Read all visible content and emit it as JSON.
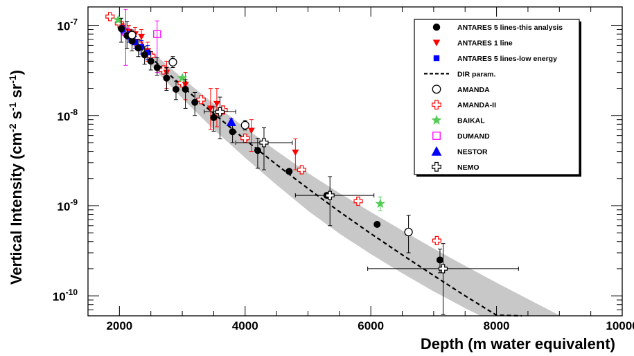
{
  "chart_data": {
    "type": "scatter",
    "title": "",
    "xlabel": "Depth (m water equivalent)",
    "ylabel": "Vertical Intensity (cm⁻² s⁻¹ sr⁻¹)",
    "ylabel_parts": {
      "main": "Vertical Intensity (cm",
      "e1": "-2",
      "s1": " s",
      "e2": "-1",
      "s2": " sr",
      "e3": "-1",
      "end": ")"
    },
    "xlim": [
      1500,
      10000
    ],
    "ylim": [
      6e-11,
      1.6e-07
    ],
    "yscale": "log",
    "legend_position": "top-right",
    "x_ticks": [
      "2000",
      "4000",
      "6000",
      "8000",
      "10000"
    ],
    "x_tick_values": [
      2000,
      4000,
      6000,
      8000,
      10000
    ],
    "y_ticks": [
      {
        "value": 1e-07,
        "base": "10",
        "exp": "-7"
      },
      {
        "value": 1e-08,
        "base": "10",
        "exp": "-8"
      },
      {
        "value": 1e-09,
        "base": "10",
        "exp": "-9"
      },
      {
        "value": 1e-10,
        "base": "10",
        "exp": "-10"
      }
    ],
    "band": {
      "x": [
        2000,
        2500,
        3000,
        3500,
        4000,
        4500,
        5000,
        5500,
        6000,
        6500,
        7000,
        7500,
        8000,
        8500,
        9000
      ],
      "upper": [
        1e-07,
        5.2e-08,
        2.6e-08,
        1.35e-08,
        7.3e-09,
        4.05e-09,
        2.3e-09,
        1.38e-09,
        8.5e-10,
        5.3e-10,
        3.35e-10,
        2.15e-10,
        1.4e-10,
        9.2e-11,
        6.1e-11
      ],
      "lower": [
        8.5e-08,
        3.6e-08,
        1.55e-08,
        7e-09,
        3.4e-09,
        1.7e-09,
        8.8e-10,
        4.9e-10,
        2.9e-10,
        1.78e-10,
        1.12e-10,
        7.3e-11,
        4.9e-11,
        3.3e-11,
        2.3e-11
      ]
    },
    "series": [
      {
        "name": "ANTARES 5 lines-this analysis",
        "marker": "circle-filled",
        "color": "#000000",
        "x": [
          2030,
          2120,
          2200,
          2300,
          2400,
          2500,
          2600,
          2750,
          2900,
          3050,
          3200,
          3500,
          3800,
          4200,
          4700,
          5300,
          6100,
          7100
        ],
        "y": [
          9.2e-08,
          7.7e-08,
          6.7e-08,
          5.6e-08,
          4.7e-08,
          4e-08,
          3.4e-08,
          2.6e-08,
          1.95e-08,
          1.95e-08,
          1.4e-08,
          9.5e-09,
          6.6e-09,
          4.1e-09,
          2.4e-09,
          1.3e-09,
          6.2e-10,
          2.5e-10
        ],
        "err_lo": [
          6.5e-08,
          5.5e-08,
          5.2e-08,
          4.5e-08,
          3.7e-08,
          3.2e-08,
          2.8e-08,
          1.9e-08,
          1.5e-08,
          1.2e-08,
          1e-08,
          6.7e-09,
          5e-09,
          2.6e-09,
          2.4e-09,
          1.3e-09,
          6.2e-10,
          1.8e-10
        ],
        "err_hi": [
          1.2e-07,
          1.1e-07,
          8.9e-08,
          7e-08,
          5.8e-08,
          5.1e-08,
          4.4e-08,
          3.4e-08,
          2.4e-08,
          2.5e-08,
          1.8e-08,
          1.25e-08,
          8e-09,
          5.6e-09,
          2.4e-09,
          1.3e-09,
          6.2e-10,
          3.3e-10
        ]
      },
      {
        "name": "ANTARES 1 line",
        "marker": "triangle-down-filled",
        "color": "#ff0000",
        "x": [
          2050,
          2150,
          2250,
          2350,
          2450,
          2750,
          3050,
          3450,
          3550,
          4100,
          4800
        ],
        "y": [
          9.5e-08,
          8.5e-08,
          8e-08,
          7.5e-08,
          5.2e-08,
          3e-08,
          2.2e-08,
          1.2e-08,
          1.35e-08,
          6.8e-09,
          3.9e-09
        ],
        "err_lo": [
          8.5e-08,
          7.5e-08,
          7e-08,
          6.5e-08,
          4e-08,
          2e-08,
          1.5e-08,
          7e-09,
          7.5e-09,
          4e-09,
          2.5e-09
        ],
        "err_hi": [
          1.05e-07,
          1e-07,
          9.5e-08,
          9e-08,
          6.5e-08,
          4e-08,
          3e-08,
          2e-08,
          2e-08,
          9e-09,
          5.5e-09
        ]
      },
      {
        "name": "ANTARES 5 lines-low energy",
        "marker": "square-filled",
        "color": "#0000ff",
        "x": [
          2050,
          2150,
          2250,
          2350,
          2450
        ],
        "y": [
          9e-08,
          7.5e-08,
          6.5e-08,
          5.8e-08,
          5e-08
        ],
        "err_lo": [
          8.2e-08,
          6.5e-08,
          5.5e-08,
          4.8e-08,
          4.2e-08
        ],
        "err_hi": [
          1e-07,
          8.5e-08,
          7.5e-08,
          6.8e-08,
          6e-08
        ]
      },
      {
        "name": "DIR param.",
        "marker": "dashed-line",
        "color": "#000000",
        "x": [
          2000,
          2500,
          3000,
          3500,
          4000,
          4500,
          5000,
          5500,
          6000,
          6500,
          7000,
          7500,
          8000,
          8400
        ],
        "y": [
          9.2e-08,
          4.4e-08,
          2.1e-08,
          1.05e-08,
          5.4e-09,
          2.85e-09,
          1.55e-09,
          8.6e-10,
          4.9e-10,
          2.85e-10,
          1.68e-10,
          1e-10,
          6.1e-11,
          4.2e-11
        ]
      },
      {
        "name": "AMANDA",
        "marker": "circle-open",
        "color": "#000000",
        "x": [
          2200,
          2850,
          4000,
          6600
        ],
        "y": [
          7.8e-08,
          3.9e-08,
          7.8e-09,
          5.1e-10
        ],
        "err_lo": [
          7e-08,
          3.4e-08,
          6.9e-09,
          3e-10
        ],
        "err_hi": [
          8.6e-08,
          4.5e-08,
          8.8e-09,
          7.8e-10
        ]
      },
      {
        "name": "AMANDA-II",
        "marker": "cross-open",
        "color": "#ff0000",
        "x": [
          1850,
          2000,
          2300,
          2500,
          2700,
          3000,
          3300,
          3650,
          4000,
          4900,
          5800,
          7050
        ],
        "y": [
          1.25e-07,
          1.05e-07,
          6.3e-08,
          4.6e-08,
          3.2e-08,
          2.3e-08,
          1.5e-08,
          1.15e-08,
          5.6e-09,
          2.5e-09,
          1.12e-09,
          4.1e-10
        ],
        "err_lo": [
          1.25e-07,
          1.05e-07,
          6.3e-08,
          4.6e-08,
          3.2e-08,
          2.3e-08,
          1.5e-08,
          1.15e-08,
          5.6e-09,
          2.5e-09,
          1.12e-09,
          4.1e-10
        ],
        "err_hi": [
          1.25e-07,
          1.05e-07,
          6.3e-08,
          4.6e-08,
          3.2e-08,
          2.3e-08,
          1.5e-08,
          1.15e-08,
          5.6e-09,
          2.5e-09,
          1.12e-09,
          4.1e-10
        ]
      },
      {
        "name": "BAIKAL",
        "marker": "star-filled",
        "color": "#55cc55",
        "x": [
          1980,
          3000,
          6150
        ],
        "y": [
          1.15e-07,
          2.6e-08,
          1.05e-09
        ],
        "err_lo": [
          1.15e-07,
          2.6e-08,
          8.8e-10
        ],
        "err_hi": [
          1.15e-07,
          2.6e-08,
          1.25e-09
        ]
      },
      {
        "name": "DUMAND",
        "marker": "square-open",
        "color": "#ff00ff",
        "x": [
          2100,
          2600
        ],
        "y": [
          8.5e-08,
          8e-08
        ],
        "err_lo": [
          3.6e-08,
          3e-08
        ],
        "err_hi": [
          1.5e-07,
          1.12e-07
        ]
      },
      {
        "name": "NESTOR",
        "marker": "triangle-up-filled",
        "color": "#0000ff",
        "x": [
          3780
        ],
        "y": [
          8.5e-09
        ],
        "err_lo": [
          7.8e-09
        ],
        "err_hi": [
          9.2e-09
        ]
      },
      {
        "name": "NEMO",
        "marker": "cross-open",
        "color": "#000000",
        "x": [
          3600,
          4300,
          5350,
          7150
        ],
        "y": [
          1.1e-08,
          5e-09,
          1.3e-09,
          2e-10
        ],
        "err_lo": [
          5.5e-09,
          2.5e-09,
          6e-10,
          6.2e-11
        ],
        "err_hi": [
          1.6e-08,
          7.3e-09,
          2.1e-09,
          3.8e-10
        ],
        "xerr_lo": [
          3350,
          3850,
          4800,
          5950
        ],
        "xerr_hi": [
          3850,
          4750,
          6050,
          8350
        ]
      }
    ]
  }
}
